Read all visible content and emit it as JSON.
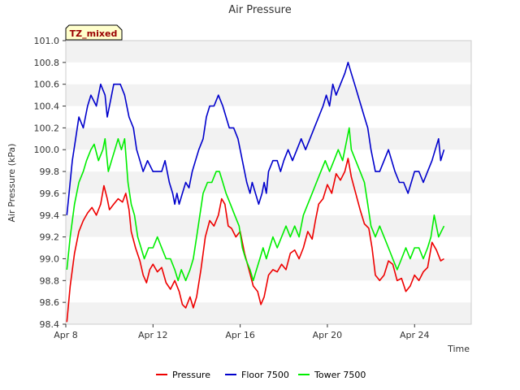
{
  "chart_data": {
    "type": "line",
    "title": "Air Pressure",
    "xlabel": "Time",
    "ylabel": "Air Pressure (kPa)",
    "badge": "TZ_mixed",
    "xlim": [
      0,
      18.6
    ],
    "ylim": [
      98.4,
      101.0
    ],
    "x_ticks": [
      {
        "x": 0,
        "label": "Apr 8"
      },
      {
        "x": 4,
        "label": "Apr 12"
      },
      {
        "x": 8,
        "label": "Apr 16"
      },
      {
        "x": 12,
        "label": "Apr 20"
      },
      {
        "x": 16,
        "label": "Apr 24"
      }
    ],
    "y_ticks": [
      98.4,
      98.6,
      98.8,
      99.0,
      99.2,
      99.4,
      99.6,
      99.8,
      100.0,
      100.2,
      100.4,
      100.6,
      100.8,
      101.0
    ],
    "y_tick_labels": [
      "98.4",
      "98.6",
      "98.8",
      "99.0",
      "99.2",
      "99.4",
      "99.6",
      "99.8",
      "100.0",
      "100.2",
      "100.4",
      "100.6",
      "100.8",
      "101.0"
    ],
    "series": [
      {
        "name": "Pressure",
        "color": "#ee0000",
        "points": [
          [
            0.05,
            98.42
          ],
          [
            0.2,
            98.75
          ],
          [
            0.4,
            99.05
          ],
          [
            0.6,
            99.25
          ],
          [
            0.8,
            99.35
          ],
          [
            1.0,
            99.42
          ],
          [
            1.2,
            99.47
          ],
          [
            1.4,
            99.4
          ],
          [
            1.6,
            99.5
          ],
          [
            1.75,
            99.67
          ],
          [
            1.9,
            99.55
          ],
          [
            2.0,
            99.45
          ],
          [
            2.2,
            99.5
          ],
          [
            2.4,
            99.55
          ],
          [
            2.6,
            99.52
          ],
          [
            2.75,
            99.6
          ],
          [
            2.9,
            99.45
          ],
          [
            3.0,
            99.25
          ],
          [
            3.2,
            99.1
          ],
          [
            3.4,
            98.98
          ],
          [
            3.55,
            98.85
          ],
          [
            3.7,
            98.78
          ],
          [
            3.85,
            98.9
          ],
          [
            4.0,
            98.95
          ],
          [
            4.2,
            98.88
          ],
          [
            4.4,
            98.92
          ],
          [
            4.6,
            98.78
          ],
          [
            4.8,
            98.72
          ],
          [
            5.0,
            98.8
          ],
          [
            5.2,
            98.7
          ],
          [
            5.35,
            98.58
          ],
          [
            5.5,
            98.55
          ],
          [
            5.7,
            98.65
          ],
          [
            5.85,
            98.55
          ],
          [
            6.0,
            98.65
          ],
          [
            6.2,
            98.9
          ],
          [
            6.4,
            99.2
          ],
          [
            6.6,
            99.35
          ],
          [
            6.8,
            99.3
          ],
          [
            7.0,
            99.4
          ],
          [
            7.15,
            99.55
          ],
          [
            7.3,
            99.5
          ],
          [
            7.45,
            99.3
          ],
          [
            7.6,
            99.28
          ],
          [
            7.8,
            99.2
          ],
          [
            8.0,
            99.25
          ],
          [
            8.2,
            99.05
          ],
          [
            8.4,
            98.9
          ],
          [
            8.6,
            98.75
          ],
          [
            8.8,
            98.7
          ],
          [
            8.95,
            98.58
          ],
          [
            9.1,
            98.65
          ],
          [
            9.3,
            98.85
          ],
          [
            9.5,
            98.9
          ],
          [
            9.7,
            98.88
          ],
          [
            9.9,
            98.95
          ],
          [
            10.1,
            98.9
          ],
          [
            10.3,
            99.05
          ],
          [
            10.5,
            99.08
          ],
          [
            10.7,
            99.0
          ],
          [
            10.9,
            99.1
          ],
          [
            11.1,
            99.25
          ],
          [
            11.3,
            99.18
          ],
          [
            11.45,
            99.35
          ],
          [
            11.6,
            99.5
          ],
          [
            11.8,
            99.55
          ],
          [
            12.0,
            99.68
          ],
          [
            12.2,
            99.6
          ],
          [
            12.4,
            99.78
          ],
          [
            12.6,
            99.72
          ],
          [
            12.8,
            99.8
          ],
          [
            12.95,
            99.92
          ],
          [
            13.1,
            99.75
          ],
          [
            13.3,
            99.6
          ],
          [
            13.5,
            99.45
          ],
          [
            13.7,
            99.32
          ],
          [
            13.9,
            99.28
          ],
          [
            14.05,
            99.1
          ],
          [
            14.2,
            98.85
          ],
          [
            14.4,
            98.8
          ],
          [
            14.6,
            98.85
          ],
          [
            14.8,
            98.98
          ],
          [
            15.0,
            98.95
          ],
          [
            15.2,
            98.8
          ],
          [
            15.4,
            98.82
          ],
          [
            15.6,
            98.7
          ],
          [
            15.8,
            98.75
          ],
          [
            16.0,
            98.85
          ],
          [
            16.2,
            98.8
          ],
          [
            16.4,
            98.88
          ],
          [
            16.6,
            98.92
          ],
          [
            16.8,
            99.15
          ],
          [
            17.0,
            99.08
          ],
          [
            17.2,
            98.98
          ],
          [
            17.35,
            99.0
          ]
        ]
      },
      {
        "name": "Floor 7500",
        "color": "#0000cc",
        "points": [
          [
            0.05,
            99.4
          ],
          [
            0.15,
            99.6
          ],
          [
            0.3,
            99.9
          ],
          [
            0.45,
            100.1
          ],
          [
            0.6,
            100.3
          ],
          [
            0.8,
            100.2
          ],
          [
            1.0,
            100.4
          ],
          [
            1.15,
            100.5
          ],
          [
            1.4,
            100.4
          ],
          [
            1.6,
            100.6
          ],
          [
            1.8,
            100.5
          ],
          [
            1.9,
            100.3
          ],
          [
            2.0,
            100.4
          ],
          [
            2.2,
            100.6
          ],
          [
            2.5,
            100.6
          ],
          [
            2.7,
            100.5
          ],
          [
            2.9,
            100.3
          ],
          [
            3.1,
            100.2
          ],
          [
            3.25,
            100.0
          ],
          [
            3.4,
            99.9
          ],
          [
            3.55,
            99.8
          ],
          [
            3.75,
            99.9
          ],
          [
            4.0,
            99.8
          ],
          [
            4.4,
            99.8
          ],
          [
            4.55,
            99.9
          ],
          [
            4.75,
            99.7
          ],
          [
            4.9,
            99.6
          ],
          [
            5.0,
            99.5
          ],
          [
            5.1,
            99.6
          ],
          [
            5.2,
            99.5
          ],
          [
            5.35,
            99.6
          ],
          [
            5.5,
            99.7
          ],
          [
            5.65,
            99.65
          ],
          [
            5.8,
            99.8
          ],
          [
            5.95,
            99.9
          ],
          [
            6.1,
            100.0
          ],
          [
            6.3,
            100.1
          ],
          [
            6.45,
            100.3
          ],
          [
            6.6,
            100.4
          ],
          [
            6.8,
            100.4
          ],
          [
            7.0,
            100.5
          ],
          [
            7.2,
            100.4
          ],
          [
            7.35,
            100.3
          ],
          [
            7.5,
            100.2
          ],
          [
            7.7,
            100.2
          ],
          [
            7.9,
            100.1
          ],
          [
            8.0,
            100.0
          ],
          [
            8.1,
            99.9
          ],
          [
            8.2,
            99.8
          ],
          [
            8.3,
            99.7
          ],
          [
            8.45,
            99.6
          ],
          [
            8.55,
            99.7
          ],
          [
            8.7,
            99.6
          ],
          [
            8.85,
            99.5
          ],
          [
            9.0,
            99.6
          ],
          [
            9.1,
            99.7
          ],
          [
            9.2,
            99.6
          ],
          [
            9.3,
            99.8
          ],
          [
            9.5,
            99.9
          ],
          [
            9.7,
            99.9
          ],
          [
            9.85,
            99.8
          ],
          [
            10.0,
            99.9
          ],
          [
            10.2,
            100.0
          ],
          [
            10.4,
            99.9
          ],
          [
            10.6,
            100.0
          ],
          [
            10.8,
            100.1
          ],
          [
            11.0,
            100.0
          ],
          [
            11.2,
            100.1
          ],
          [
            11.4,
            100.2
          ],
          [
            11.6,
            100.3
          ],
          [
            11.8,
            100.4
          ],
          [
            11.95,
            100.5
          ],
          [
            12.1,
            100.4
          ],
          [
            12.25,
            100.6
          ],
          [
            12.4,
            100.5
          ],
          [
            12.6,
            100.6
          ],
          [
            12.8,
            100.7
          ],
          [
            12.95,
            100.8
          ],
          [
            13.1,
            100.7
          ],
          [
            13.25,
            100.6
          ],
          [
            13.4,
            100.5
          ],
          [
            13.55,
            100.4
          ],
          [
            13.7,
            100.3
          ],
          [
            13.85,
            100.2
          ],
          [
            14.0,
            100.0
          ],
          [
            14.1,
            99.9
          ],
          [
            14.2,
            99.8
          ],
          [
            14.4,
            99.8
          ],
          [
            14.6,
            99.9
          ],
          [
            14.8,
            100.0
          ],
          [
            14.95,
            99.9
          ],
          [
            15.1,
            99.8
          ],
          [
            15.3,
            99.7
          ],
          [
            15.5,
            99.7
          ],
          [
            15.7,
            99.6
          ],
          [
            15.85,
            99.7
          ],
          [
            16.0,
            99.8
          ],
          [
            16.2,
            99.8
          ],
          [
            16.4,
            99.7
          ],
          [
            16.6,
            99.8
          ],
          [
            16.8,
            99.9
          ],
          [
            16.95,
            100.0
          ],
          [
            17.1,
            100.1
          ],
          [
            17.2,
            99.9
          ],
          [
            17.35,
            100.0
          ]
        ]
      },
      {
        "name": "Tower 7500",
        "color": "#00ee00",
        "points": [
          [
            0.05,
            98.9
          ],
          [
            0.2,
            99.2
          ],
          [
            0.4,
            99.5
          ],
          [
            0.6,
            99.7
          ],
          [
            0.8,
            99.8
          ],
          [
            0.95,
            99.9
          ],
          [
            1.15,
            100.0
          ],
          [
            1.3,
            100.05
          ],
          [
            1.5,
            99.9
          ],
          [
            1.7,
            100.0
          ],
          [
            1.8,
            100.1
          ],
          [
            1.95,
            99.8
          ],
          [
            2.1,
            99.9
          ],
          [
            2.25,
            100.0
          ],
          [
            2.4,
            100.1
          ],
          [
            2.55,
            100.0
          ],
          [
            2.7,
            100.1
          ],
          [
            2.85,
            99.7
          ],
          [
            3.0,
            99.5
          ],
          [
            3.15,
            99.4
          ],
          [
            3.3,
            99.2
          ],
          [
            3.45,
            99.1
          ],
          [
            3.6,
            99.0
          ],
          [
            3.8,
            99.1
          ],
          [
            4.0,
            99.1
          ],
          [
            4.2,
            99.2
          ],
          [
            4.4,
            99.1
          ],
          [
            4.6,
            99.0
          ],
          [
            4.8,
            99.0
          ],
          [
            5.0,
            98.9
          ],
          [
            5.15,
            98.8
          ],
          [
            5.3,
            98.9
          ],
          [
            5.5,
            98.8
          ],
          [
            5.7,
            98.9
          ],
          [
            5.85,
            99.0
          ],
          [
            6.0,
            99.2
          ],
          [
            6.15,
            99.4
          ],
          [
            6.3,
            99.6
          ],
          [
            6.5,
            99.7
          ],
          [
            6.7,
            99.7
          ],
          [
            6.9,
            99.8
          ],
          [
            7.05,
            99.8
          ],
          [
            7.2,
            99.7
          ],
          [
            7.35,
            99.6
          ],
          [
            7.55,
            99.5
          ],
          [
            7.75,
            99.4
          ],
          [
            7.95,
            99.3
          ],
          [
            8.1,
            99.1
          ],
          [
            8.25,
            99.0
          ],
          [
            8.45,
            98.9
          ],
          [
            8.6,
            98.8
          ],
          [
            8.75,
            98.9
          ],
          [
            8.9,
            99.0
          ],
          [
            9.05,
            99.1
          ],
          [
            9.2,
            99.0
          ],
          [
            9.35,
            99.1
          ],
          [
            9.5,
            99.2
          ],
          [
            9.7,
            99.1
          ],
          [
            9.9,
            99.2
          ],
          [
            10.1,
            99.3
          ],
          [
            10.3,
            99.2
          ],
          [
            10.5,
            99.3
          ],
          [
            10.7,
            99.2
          ],
          [
            10.9,
            99.4
          ],
          [
            11.1,
            99.5
          ],
          [
            11.3,
            99.6
          ],
          [
            11.5,
            99.7
          ],
          [
            11.7,
            99.8
          ],
          [
            11.9,
            99.9
          ],
          [
            12.1,
            99.8
          ],
          [
            12.3,
            99.9
          ],
          [
            12.5,
            100.0
          ],
          [
            12.7,
            99.9
          ],
          [
            12.9,
            100.1
          ],
          [
            13.0,
            100.2
          ],
          [
            13.1,
            100.0
          ],
          [
            13.3,
            99.9
          ],
          [
            13.5,
            99.8
          ],
          [
            13.7,
            99.7
          ],
          [
            13.85,
            99.5
          ],
          [
            14.0,
            99.3
          ],
          [
            14.2,
            99.2
          ],
          [
            14.4,
            99.3
          ],
          [
            14.6,
            99.2
          ],
          [
            14.8,
            99.1
          ],
          [
            15.0,
            99.0
          ],
          [
            15.2,
            98.9
          ],
          [
            15.4,
            99.0
          ],
          [
            15.6,
            99.1
          ],
          [
            15.8,
            99.0
          ],
          [
            16.0,
            99.1
          ],
          [
            16.2,
            99.1
          ],
          [
            16.4,
            99.0
          ],
          [
            16.6,
            99.1
          ],
          [
            16.75,
            99.2
          ],
          [
            16.9,
            99.4
          ],
          [
            17.0,
            99.3
          ],
          [
            17.1,
            99.2
          ],
          [
            17.35,
            99.3
          ]
        ]
      }
    ]
  }
}
